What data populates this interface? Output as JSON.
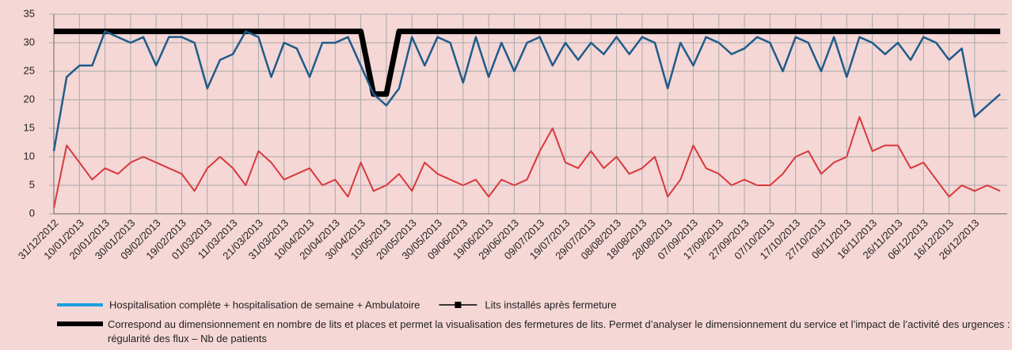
{
  "chart_data": {
    "type": "line",
    "categories": [
      "31/12/2012",
      null,
      "10/01/2013",
      null,
      "20/01/2013",
      null,
      "30/01/2013",
      null,
      "09/02/2013",
      null,
      "19/02/2013",
      null,
      "01/03/2013",
      null,
      "11/03/2013",
      null,
      "21/03/2013",
      null,
      "31/03/2013",
      null,
      "10/04/2013",
      null,
      "20/04/2013",
      null,
      "30/04/2013",
      null,
      "10/05/2013",
      null,
      "20/05/2013",
      null,
      "30/05/2013",
      null,
      "09/06/2013",
      null,
      "19/06/2013",
      null,
      "29/06/2013",
      null,
      "09/07/2013",
      null,
      "19/07/2013",
      null,
      "29/07/2013",
      null,
      "08/08/2013",
      null,
      "18/08/2013",
      null,
      "28/08/2013",
      null,
      "07/09/2013",
      null,
      "17/09/2013",
      null,
      "27/09/2013",
      null,
      "07/10/2013",
      null,
      "17/10/2013",
      null,
      "27/10/2013",
      null,
      "06/11/2013",
      null,
      "16/11/2013",
      null,
      "26/11/2013",
      null,
      "06/12/2013",
      null,
      "16/12/2013",
      null,
      "26/12/2013",
      null,
      null
    ],
    "series": [
      {
        "name": "Hospitalisation complète + hospitalisation de semaine + Ambulatoire",
        "color": "#1f5c8a",
        "legend_color": "#1a9fdc",
        "width": 2.5,
        "values": [
          11,
          24,
          26,
          26,
          32,
          31,
          30,
          31,
          26,
          31,
          31,
          30,
          22,
          27,
          28,
          32,
          31,
          24,
          30,
          29,
          24,
          30,
          30,
          31,
          26,
          21,
          19,
          22,
          31,
          26,
          31,
          30,
          23,
          31,
          24,
          30,
          25,
          30,
          31,
          26,
          30,
          27,
          30,
          28,
          31,
          28,
          31,
          30,
          22,
          30,
          26,
          31,
          30,
          28,
          29,
          31,
          30,
          25,
          31,
          30,
          25,
          31,
          24,
          31,
          30,
          28,
          30,
          27,
          31,
          30,
          27,
          29,
          17,
          19,
          21
        ]
      },
      {
        "name": "Correspond au dimensionnement en nombre de lits et places et permet la visualisation des fermetures de lits. Permet d’analyser le dimensionnement du service et l’impact de l’activité des urgences : régularité des flux – Nb de patients",
        "color": "#000000",
        "width": 7,
        "values": [
          32,
          32,
          32,
          32,
          32,
          32,
          32,
          32,
          32,
          32,
          32,
          32,
          32,
          32,
          32,
          32,
          32,
          32,
          32,
          32,
          32,
          32,
          32,
          32,
          32,
          21,
          21,
          32,
          32,
          32,
          32,
          32,
          32,
          32,
          32,
          32,
          32,
          32,
          32,
          32,
          32,
          32,
          32,
          32,
          32,
          32,
          32,
          32,
          32,
          32,
          32,
          32,
          32,
          32,
          32,
          32,
          32,
          32,
          32,
          32,
          32,
          32,
          32,
          32,
          32,
          32,
          32,
          32,
          32,
          32,
          32,
          32,
          32,
          32,
          32
        ]
      },
      {
        "color": "#d8393b",
        "width": 2,
        "values": [
          1,
          12,
          9,
          6,
          8,
          7,
          9,
          10,
          9,
          8,
          7,
          4,
          8,
          10,
          8,
          5,
          11,
          9,
          6,
          7,
          8,
          5,
          6,
          3,
          9,
          4,
          5,
          7,
          4,
          9,
          7,
          6,
          5,
          6,
          3,
          6,
          5,
          6,
          11,
          15,
          9,
          8,
          11,
          8,
          10,
          7,
          8,
          10,
          3,
          6,
          12,
          8,
          7,
          5,
          6,
          5,
          5,
          7,
          10,
          11,
          7,
          9,
          10,
          17,
          11,
          12,
          12,
          8,
          9,
          6,
          3,
          5,
          4,
          5,
          4
        ]
      }
    ],
    "legend_items": [
      "Lits installés après fermeture"
    ],
    "ylim": [
      0,
      35
    ],
    "yticks": [
      0,
      5,
      10,
      15,
      20,
      25,
      30,
      35
    ],
    "grid": true
  }
}
